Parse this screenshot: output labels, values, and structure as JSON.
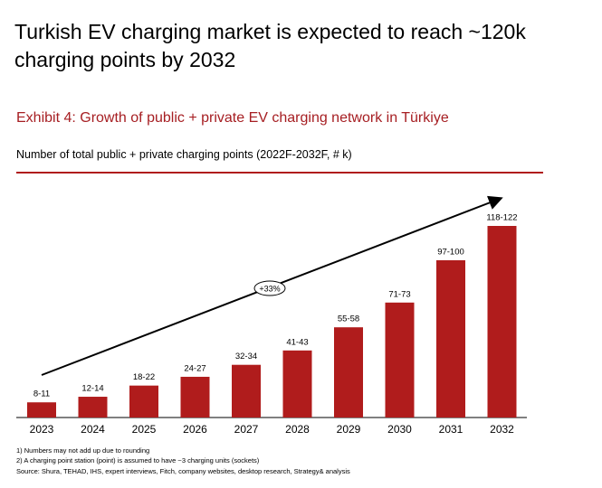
{
  "chart_data": {
    "type": "bar",
    "title": "Turkish EV charging market is expected to reach ~120k charging points by 2032",
    "subtitle": "Exhibit 4: Growth of public + private EV charging network in Türkiye",
    "axis_label": "Number of total public + private charging points (2022F-2032F, # k)",
    "categories": [
      "2023",
      "2024",
      "2025",
      "2026",
      "2027",
      "2028",
      "2029",
      "2030",
      "2031",
      "2032"
    ],
    "values": [
      9.5,
      13,
      20,
      25.5,
      33,
      42,
      56.5,
      72,
      98.5,
      120
    ],
    "value_labels": [
      "8-11",
      "12-14",
      "18-22",
      "24-27",
      "32-34",
      "41-43",
      "55-58",
      "71-73",
      "97-100",
      "118-122"
    ],
    "color": "#b01c1c",
    "annotation": "+33%",
    "footnotes": [
      "1) Numbers may not add up due to rounding",
      "2)  A charging point station (point) is assumed to have ~3 charging units (sockets)"
    ],
    "source": "Source: Shura, TEHAD, IHS, expert interviews, Fitch, company websites, desktop research, Strategy& analysis"
  }
}
